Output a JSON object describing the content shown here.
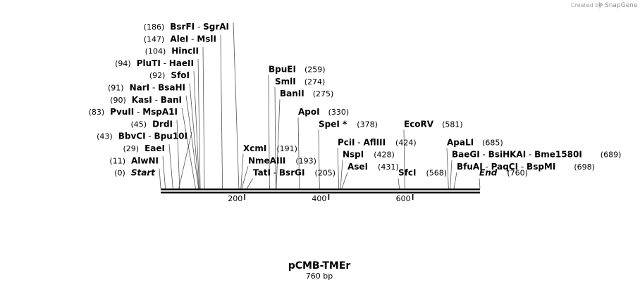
{
  "plasmid": {
    "name": "pCMB-TMEr",
    "size_label": "760 bp",
    "length_bp": 760
  },
  "credit": {
    "prefix": "Created by",
    "brand": "SnapGene"
  },
  "axis": {
    "ticks": [
      200,
      400,
      600
    ]
  },
  "sites": [
    {
      "id": "bsrfi",
      "pos": 186,
      "kind": "left",
      "row": 0,
      "pos_text": "(186)",
      "names": [
        "BsrFI",
        "SgrAI"
      ]
    },
    {
      "id": "alei",
      "pos": 147,
      "kind": "left",
      "row": 1,
      "pos_text": "(147)",
      "names": [
        "AleI",
        "MslI"
      ]
    },
    {
      "id": "hincii",
      "pos": 104,
      "kind": "left",
      "row": 2,
      "pos_text": "(104)",
      "names": [
        "HincII"
      ]
    },
    {
      "id": "pluti",
      "pos": 94,
      "kind": "left",
      "row": 3,
      "pos_text": "(94)",
      "names": [
        "PluTI",
        "HaeII"
      ]
    },
    {
      "id": "sfoi",
      "pos": 92,
      "kind": "left",
      "row": 4,
      "pos_text": "(92)",
      "names": [
        "SfoI"
      ]
    },
    {
      "id": "nari",
      "pos": 91,
      "kind": "left",
      "row": 5,
      "pos_text": "(91)",
      "names": [
        "NarI",
        "BsaHI"
      ]
    },
    {
      "id": "kasi",
      "pos": 90,
      "kind": "left",
      "row": 6,
      "pos_text": "(90)",
      "names": [
        "KasI",
        "BanI"
      ]
    },
    {
      "id": "pvuii",
      "pos": 83,
      "kind": "left",
      "row": 7,
      "pos_text": "(83)",
      "names": [
        "PvuII",
        "MspA1I"
      ]
    },
    {
      "id": "drdi",
      "pos": 45,
      "kind": "left",
      "row": 8,
      "pos_text": "(45)",
      "names": [
        "DrdI"
      ]
    },
    {
      "id": "bbvci",
      "pos": 43,
      "kind": "left",
      "row": 9,
      "pos_text": "(43)",
      "names": [
        "BbvCI",
        "Bpu10I"
      ]
    },
    {
      "id": "eaei",
      "pos": 29,
      "kind": "left",
      "row": 10,
      "pos_text": "(29)",
      "names": [
        "EaeI"
      ]
    },
    {
      "id": "alwni",
      "pos": 11,
      "kind": "left",
      "row": 11,
      "pos_text": "(11)",
      "names": [
        "AlwNI"
      ]
    },
    {
      "id": "start",
      "pos": 0,
      "kind": "left",
      "row": 12,
      "pos_text": "(0)",
      "names": [
        "Start"
      ],
      "italic": true
    },
    {
      "id": "bpuei",
      "pos": 259,
      "kind": "right",
      "row": 3.5,
      "pos_text": "(259)",
      "names": [
        "BpuEI"
      ]
    },
    {
      "id": "smli",
      "pos": 274,
      "kind": "right",
      "row": 4.5,
      "pos_text": "(274)",
      "names": [
        "SmlI"
      ]
    },
    {
      "id": "banii",
      "pos": 275,
      "kind": "right",
      "row": 5.5,
      "pos_text": "(275)",
      "names": [
        "BanII"
      ]
    },
    {
      "id": "apoi",
      "pos": 330,
      "kind": "right",
      "row": 7,
      "pos_text": "(330)",
      "names": [
        "ApoI"
      ]
    },
    {
      "id": "xcmi",
      "pos": 191,
      "kind": "right",
      "row": 10,
      "pos_text": "(191)",
      "names": [
        "XcmI"
      ]
    },
    {
      "id": "nmeaiii",
      "pos": 193,
      "kind": "right",
      "row": 11,
      "pos_text": "(193)",
      "names": [
        "NmeAIII"
      ]
    },
    {
      "id": "tati",
      "pos": 205,
      "kind": "right",
      "row": 12,
      "pos_text": "(205)",
      "names": [
        "TatI",
        "BsrGI"
      ]
    },
    {
      "id": "spei",
      "pos": 378,
      "kind": "right",
      "row": 8,
      "pos_text": "(378)",
      "names": [
        "SpeI *"
      ]
    },
    {
      "id": "pcii",
      "pos": 424,
      "kind": "right",
      "row": 9.5,
      "pos_text": "(424)",
      "names": [
        "PciI",
        "AflIII"
      ]
    },
    {
      "id": "nspi",
      "pos": 428,
      "kind": "right",
      "row": 10.5,
      "pos_text": "(428)",
      "names": [
        "NspI"
      ]
    },
    {
      "id": "asei",
      "pos": 431,
      "kind": "right",
      "row": 11.5,
      "pos_text": "(431)",
      "names": [
        "AseI"
      ]
    },
    {
      "id": "sfci",
      "pos": 568,
      "kind": "right",
      "row": 12,
      "pos_text": "(568)",
      "names": [
        "SfcI"
      ]
    },
    {
      "id": "ecorv",
      "pos": 581,
      "kind": "right",
      "row": 8,
      "pos_text": "(581)",
      "names": [
        "EcoRV"
      ]
    },
    {
      "id": "apali",
      "pos": 685,
      "kind": "right",
      "row": 9.5,
      "pos_text": "(685)",
      "names": [
        "ApaLI"
      ]
    },
    {
      "id": "baegi",
      "pos": 689,
      "kind": "right",
      "row": 10.5,
      "pos_text": "(689)",
      "names": [
        "BaeGI",
        "BsiHKAI",
        "Bme1580I"
      ]
    },
    {
      "id": "bfuai",
      "pos": 698,
      "kind": "right",
      "row": 11.5,
      "pos_text": "(698)",
      "names": [
        "BfuAI",
        "PaqCI",
        "BspMI"
      ]
    },
    {
      "id": "end",
      "pos": 760,
      "kind": "right",
      "row": 12,
      "pos_text": "(760)",
      "names": [
        "End"
      ],
      "italic": true
    }
  ]
}
